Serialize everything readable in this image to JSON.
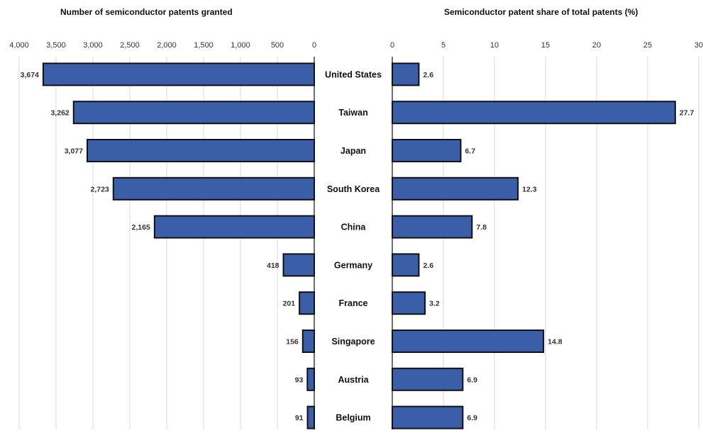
{
  "chart_data": [
    {
      "type": "bar",
      "orientation": "horizontal",
      "direction": "right-to-left",
      "title": "Number of semiconductor patents granted",
      "categories": [
        "United States",
        "Taiwan",
        "Japan",
        "South Korea",
        "China",
        "Germany",
        "France",
        "Singapore",
        "Austria",
        "Belgium"
      ],
      "values": [
        3674,
        3262,
        3077,
        2723,
        2165,
        418,
        201,
        156,
        93,
        91
      ],
      "data_labels": [
        "3,674",
        "3,262",
        "3,077",
        "2,723",
        "2,165",
        "418",
        "201",
        "156",
        "93",
        "91"
      ],
      "xlim": [
        0,
        4000
      ],
      "ticks": [
        4000,
        3500,
        3000,
        2500,
        2000,
        1500,
        1000,
        500,
        0
      ],
      "tick_labels": [
        "4,000",
        "3,500",
        "3,000",
        "2,500",
        "2,000",
        "1,500",
        "1,000",
        "500",
        "0"
      ],
      "grid": true,
      "color": "#3a5fa8"
    },
    {
      "type": "bar",
      "orientation": "horizontal",
      "title": "Semiconductor patent share of total patents (%)",
      "categories": [
        "United States",
        "Taiwan",
        "Japan",
        "South Korea",
        "China",
        "Germany",
        "France",
        "Singapore",
        "Austria",
        "Belgium"
      ],
      "values": [
        2.6,
        27.7,
        6.7,
        12.3,
        7.8,
        2.6,
        3.2,
        14.8,
        6.9,
        6.9
      ],
      "data_labels": [
        "2.6",
        "27.7",
        "6.7",
        "12.3",
        "7.8",
        "2.6",
        "3.2",
        "14.8",
        "6.9",
        "6.9"
      ],
      "xlim": [
        0,
        30
      ],
      "ticks": [
        0,
        5,
        10,
        15,
        20,
        25,
        30
      ],
      "tick_labels": [
        "0",
        "5",
        "10",
        "15",
        "20",
        "25",
        "30"
      ],
      "grid": true,
      "color": "#3a5fa8"
    }
  ]
}
